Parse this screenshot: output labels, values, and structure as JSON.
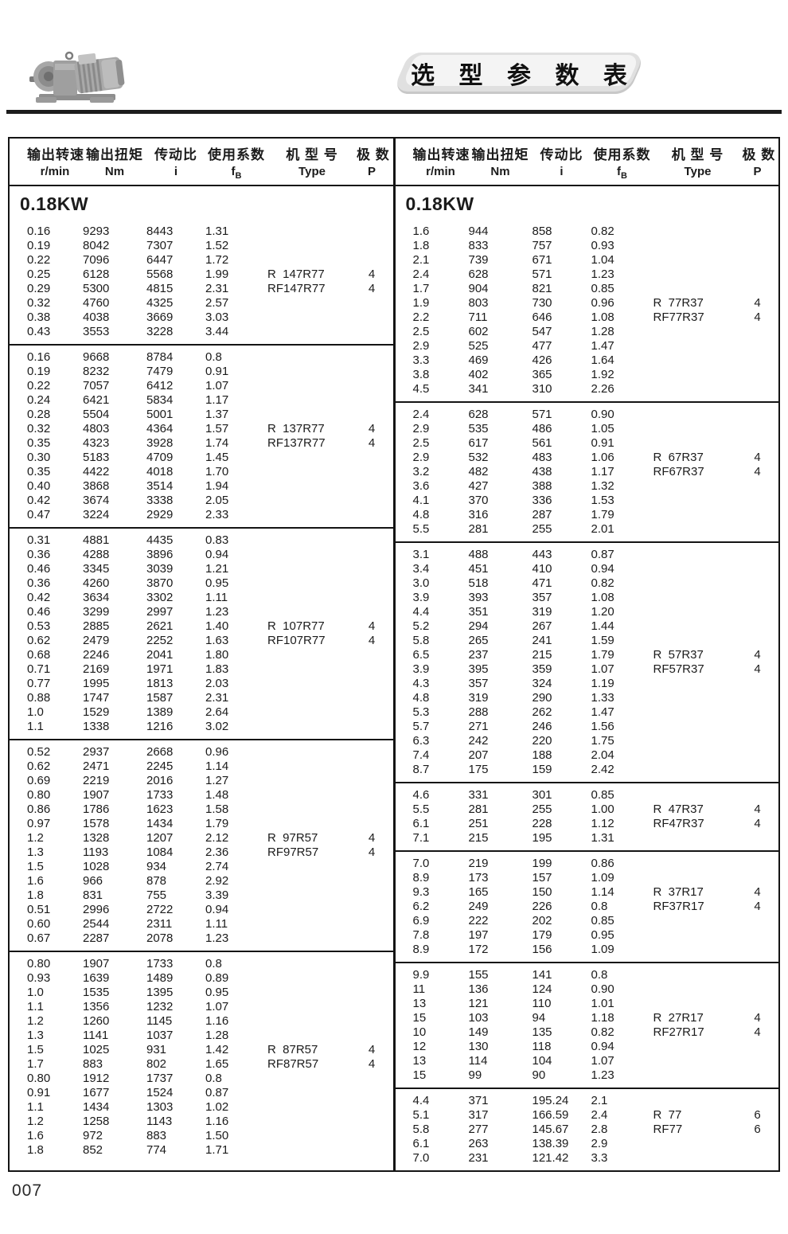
{
  "banner": {
    "title": "选 型 参 数 表"
  },
  "page": {
    "number": "007"
  },
  "headers": [
    {
      "cn": "输出转速",
      "en": "r/min"
    },
    {
      "cn": "输出扭矩",
      "en": "Nm"
    },
    {
      "cn": "传动比",
      "en": "i"
    },
    {
      "cn": "使用系数",
      "en": "f",
      "sub": "B"
    },
    {
      "cn": "机 型 号",
      "en": "Type"
    },
    {
      "cn": "极 数",
      "en": "P"
    }
  ],
  "tables": [
    {
      "title": "0.18KW",
      "groups": [
        {
          "rows": [
            [
              "0.16",
              "9293",
              "8443",
              "1.31",
              "",
              ""
            ],
            [
              "0.19",
              "8042",
              "7307",
              "1.52",
              "",
              ""
            ],
            [
              "0.22",
              "7096",
              "6447",
              "1.72",
              "",
              ""
            ],
            [
              "0.25",
              "6128",
              "5568",
              "1.99",
              "R  147R77",
              "4"
            ],
            [
              "0.29",
              "5300",
              "4815",
              "2.31",
              "RF147R77",
              "4"
            ],
            [
              "0.32",
              "4760",
              "4325",
              "2.57",
              "",
              ""
            ],
            [
              "0.38",
              "4038",
              "3669",
              "3.03",
              "",
              ""
            ],
            [
              "0.43",
              "3553",
              "3228",
              "3.44",
              "",
              ""
            ]
          ]
        },
        {
          "rows": [
            [
              "0.16",
              "9668",
              "8784",
              "0.8",
              "",
              ""
            ],
            [
              "0.19",
              "8232",
              "7479",
              "0.91",
              "",
              ""
            ],
            [
              "0.22",
              "7057",
              "6412",
              "1.07",
              "",
              ""
            ],
            [
              "0.24",
              "6421",
              "5834",
              "1.17",
              "",
              ""
            ],
            [
              "0.28",
              "5504",
              "5001",
              "1.37",
              "",
              ""
            ],
            [
              "0.32",
              "4803",
              "4364",
              "1.57",
              "R  137R77",
              "4"
            ],
            [
              "0.35",
              "4323",
              "3928",
              "1.74",
              "RF137R77",
              "4"
            ],
            [
              "0.30",
              "5183",
              "4709",
              "1.45",
              "",
              ""
            ],
            [
              "0.35",
              "4422",
              "4018",
              "1.70",
              "",
              ""
            ],
            [
              "0.40",
              "3868",
              "3514",
              "1.94",
              "",
              ""
            ],
            [
              "0.42",
              "3674",
              "3338",
              "2.05",
              "",
              ""
            ],
            [
              "0.47",
              "3224",
              "2929",
              "2.33",
              "",
              ""
            ]
          ]
        },
        {
          "rows": [
            [
              "0.31",
              "4881",
              "4435",
              "0.83",
              "",
              ""
            ],
            [
              "0.36",
              "4288",
              "3896",
              "0.94",
              "",
              ""
            ],
            [
              "0.46",
              "3345",
              "3039",
              "1.21",
              "",
              ""
            ],
            [
              "0.36",
              "4260",
              "3870",
              "0.95",
              "",
              ""
            ],
            [
              "0.42",
              "3634",
              "3302",
              "1.11",
              "",
              ""
            ],
            [
              "0.46",
              "3299",
              "2997",
              "1.23",
              "",
              ""
            ],
            [
              "0.53",
              "2885",
              "2621",
              "1.40",
              "R  107R77",
              "4"
            ],
            [
              "0.62",
              "2479",
              "2252",
              "1.63",
              "RF107R77",
              "4"
            ],
            [
              "0.68",
              "2246",
              "2041",
              "1.80",
              "",
              ""
            ],
            [
              "0.71",
              "2169",
              "1971",
              "1.83",
              "",
              ""
            ],
            [
              "0.77",
              "1995",
              "1813",
              "2.03",
              "",
              ""
            ],
            [
              "0.88",
              "1747",
              "1587",
              "2.31",
              "",
              ""
            ],
            [
              "1.0",
              "1529",
              "1389",
              "2.64",
              "",
              ""
            ],
            [
              "1.1",
              "1338",
              "1216",
              "3.02",
              "",
              ""
            ]
          ]
        },
        {
          "rows": [
            [
              "0.52",
              "2937",
              "2668",
              "0.96",
              "",
              ""
            ],
            [
              "0.62",
              "2471",
              "2245",
              "1.14",
              "",
              ""
            ],
            [
              "0.69",
              "2219",
              "2016",
              "1.27",
              "",
              ""
            ],
            [
              "0.80",
              "1907",
              "1733",
              "1.48",
              "",
              ""
            ],
            [
              "0.86",
              "1786",
              "1623",
              "1.58",
              "",
              ""
            ],
            [
              "0.97",
              "1578",
              "1434",
              "1.79",
              "",
              ""
            ],
            [
              "1.2",
              "1328",
              "1207",
              "2.12",
              "R  97R57",
              "4"
            ],
            [
              "1.3",
              "1193",
              "1084",
              "2.36",
              "RF97R57",
              "4"
            ],
            [
              "1.5",
              "1028",
              "934",
              "2.74",
              "",
              ""
            ],
            [
              "1.6",
              "966",
              "878",
              "2.92",
              "",
              ""
            ],
            [
              "1.8",
              "831",
              "755",
              "3.39",
              "",
              ""
            ],
            [
              "0.51",
              "2996",
              "2722",
              "0.94",
              "",
              ""
            ],
            [
              "0.60",
              "2544",
              "2311",
              "1.11",
              "",
              ""
            ],
            [
              "0.67",
              "2287",
              "2078",
              "1.23",
              "",
              ""
            ]
          ]
        },
        {
          "rows": [
            [
              "0.80",
              "1907",
              "1733",
              "0.8",
              "",
              ""
            ],
            [
              "0.93",
              "1639",
              "1489",
              "0.89",
              "",
              ""
            ],
            [
              "1.0",
              "1535",
              "1395",
              "0.95",
              "",
              ""
            ],
            [
              "1.1",
              "1356",
              "1232",
              "1.07",
              "",
              ""
            ],
            [
              "1.2",
              "1260",
              "1145",
              "1.16",
              "",
              ""
            ],
            [
              "1.3",
              "1141",
              "1037",
              "1.28",
              "",
              ""
            ],
            [
              "1.5",
              "1025",
              "931",
              "1.42",
              "R  87R57",
              "4"
            ],
            [
              "1.7",
              "883",
              "802",
              "1.65",
              "RF87R57",
              "4"
            ],
            [
              "0.80",
              "1912",
              "1737",
              "0.8",
              "",
              ""
            ],
            [
              "0.91",
              "1677",
              "1524",
              "0.87",
              "",
              ""
            ],
            [
              "1.1",
              "1434",
              "1303",
              "1.02",
              "",
              ""
            ],
            [
              "1.2",
              "1258",
              "1143",
              "1.16",
              "",
              ""
            ],
            [
              "1.6",
              "972",
              "883",
              "1.50",
              "",
              ""
            ],
            [
              "1.8",
              "852",
              "774",
              "1.71",
              "",
              ""
            ]
          ]
        }
      ]
    },
    {
      "title": "0.18KW",
      "groups": [
        {
          "rows": [
            [
              "1.6",
              "944",
              "858",
              "0.82",
              "",
              ""
            ],
            [
              "1.8",
              "833",
              "757",
              "0.93",
              "",
              ""
            ],
            [
              "2.1",
              "739",
              "671",
              "1.04",
              "",
              ""
            ],
            [
              "2.4",
              "628",
              "571",
              "1.23",
              "",
              ""
            ],
            [
              "1.7",
              "904",
              "821",
              "0.85",
              "",
              ""
            ],
            [
              "1.9",
              "803",
              "730",
              "0.96",
              "R  77R37",
              "4"
            ],
            [
              "2.2",
              "711",
              "646",
              "1.08",
              "RF77R37",
              "4"
            ],
            [
              "2.5",
              "602",
              "547",
              "1.28",
              "",
              ""
            ],
            [
              "2.9",
              "525",
              "477",
              "1.47",
              "",
              ""
            ],
            [
              "3.3",
              "469",
              "426",
              "1.64",
              "",
              ""
            ],
            [
              "3.8",
              "402",
              "365",
              "1.92",
              "",
              ""
            ],
            [
              "4.5",
              "341",
              "310",
              "2.26",
              "",
              ""
            ]
          ]
        },
        {
          "rows": [
            [
              "2.4",
              "628",
              "571",
              "0.90",
              "",
              ""
            ],
            [
              "2.9",
              "535",
              "486",
              "1.05",
              "",
              ""
            ],
            [
              "2.5",
              "617",
              "561",
              "0.91",
              "",
              ""
            ],
            [
              "2.9",
              "532",
              "483",
              "1.06",
              "R  67R37",
              "4"
            ],
            [
              "3.2",
              "482",
              "438",
              "1.17",
              "RF67R37",
              "4"
            ],
            [
              "3.6",
              "427",
              "388",
              "1.32",
              "",
              ""
            ],
            [
              "4.1",
              "370",
              "336",
              "1.53",
              "",
              ""
            ],
            [
              "4.8",
              "316",
              "287",
              "1.79",
              "",
              ""
            ],
            [
              "5.5",
              "281",
              "255",
              "2.01",
              "",
              ""
            ]
          ]
        },
        {
          "rows": [
            [
              "3.1",
              "488",
              "443",
              "0.87",
              "",
              ""
            ],
            [
              "3.4",
              "451",
              "410",
              "0.94",
              "",
              ""
            ],
            [
              "3.0",
              "518",
              "471",
              "0.82",
              "",
              ""
            ],
            [
              "3.9",
              "393",
              "357",
              "1.08",
              "",
              ""
            ],
            [
              "4.4",
              "351",
              "319",
              "1.20",
              "",
              ""
            ],
            [
              "5.2",
              "294",
              "267",
              "1.44",
              "",
              ""
            ],
            [
              "5.8",
              "265",
              "241",
              "1.59",
              "",
              ""
            ],
            [
              "6.5",
              "237",
              "215",
              "1.79",
              "R  57R37",
              "4"
            ],
            [
              "3.9",
              "395",
              "359",
              "1.07",
              "RF57R37",
              "4"
            ],
            [
              "4.3",
              "357",
              "324",
              "1.19",
              "",
              ""
            ],
            [
              "4.8",
              "319",
              "290",
              "1.33",
              "",
              ""
            ],
            [
              "5.3",
              "288",
              "262",
              "1.47",
              "",
              ""
            ],
            [
              "5.7",
              "271",
              "246",
              "1.56",
              "",
              ""
            ],
            [
              "6.3",
              "242",
              "220",
              "1.75",
              "",
              ""
            ],
            [
              "7.4",
              "207",
              "188",
              "2.04",
              "",
              ""
            ],
            [
              "8.7",
              "175",
              "159",
              "2.42",
              "",
              ""
            ]
          ]
        },
        {
          "rows": [
            [
              "4.6",
              "331",
              "301",
              "0.85",
              "",
              ""
            ],
            [
              "5.5",
              "281",
              "255",
              "1.00",
              "R  47R37",
              "4"
            ],
            [
              "6.1",
              "251",
              "228",
              "1.12",
              "RF47R37",
              "4"
            ],
            [
              "7.1",
              "215",
              "195",
              "1.31",
              "",
              ""
            ]
          ]
        },
        {
          "rows": [
            [
              "7.0",
              "219",
              "199",
              "0.86",
              "",
              ""
            ],
            [
              "8.9",
              "173",
              "157",
              "1.09",
              "",
              ""
            ],
            [
              "9.3",
              "165",
              "150",
              "1.14",
              "R  37R17",
              "4"
            ],
            [
              "6.2",
              "249",
              "226",
              "0.8",
              "RF37R17",
              "4"
            ],
            [
              "6.9",
              "222",
              "202",
              "0.85",
              "",
              ""
            ],
            [
              "7.8",
              "197",
              "179",
              "0.95",
              "",
              ""
            ],
            [
              "8.9",
              "172",
              "156",
              "1.09",
              "",
              ""
            ]
          ]
        },
        {
          "rows": [
            [
              "9.9",
              "155",
              "141",
              "0.8",
              "",
              ""
            ],
            [
              "11",
              "136",
              "124",
              "0.90",
              "",
              ""
            ],
            [
              "13",
              "121",
              "110",
              "1.01",
              "",
              ""
            ],
            [
              "15",
              "103",
              "94",
              "1.18",
              "R  27R17",
              "4"
            ],
            [
              "10",
              "149",
              "135",
              "0.82",
              "RF27R17",
              "4"
            ],
            [
              "12",
              "130",
              "118",
              "0.94",
              "",
              ""
            ],
            [
              "13",
              "114",
              "104",
              "1.07",
              "",
              ""
            ],
            [
              "15",
              "99",
              "90",
              "1.23",
              "",
              ""
            ]
          ]
        },
        {
          "rows": [
            [
              "4.4",
              "371",
              "195.24",
              "2.1",
              "",
              ""
            ],
            [
              "5.1",
              "317",
              "166.59",
              "2.4",
              "R  77",
              "6"
            ],
            [
              "5.8",
              "277",
              "145.67",
              "2.8",
              "RF77",
              "6"
            ],
            [
              "6.1",
              "263",
              "138.39",
              "2.9",
              "",
              ""
            ],
            [
              "7.0",
              "231",
              "121.42",
              "3.3",
              "",
              ""
            ]
          ]
        }
      ]
    }
  ]
}
